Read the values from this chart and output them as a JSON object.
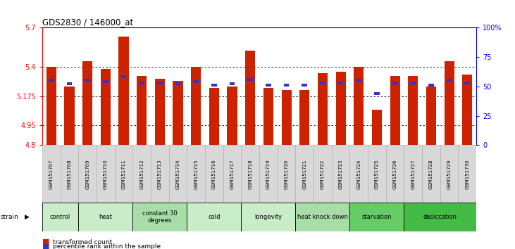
{
  "title": "GDS2830 / 146000_at",
  "samples": [
    "GSM151707",
    "GSM151708",
    "GSM151709",
    "GSM151710",
    "GSM151711",
    "GSM151712",
    "GSM151713",
    "GSM151714",
    "GSM151715",
    "GSM151716",
    "GSM151717",
    "GSM151718",
    "GSM151719",
    "GSM151720",
    "GSM151721",
    "GSM151722",
    "GSM151723",
    "GSM151724",
    "GSM151725",
    "GSM151726",
    "GSM151727",
    "GSM151728",
    "GSM151729",
    "GSM151730"
  ],
  "red_values": [
    5.4,
    5.25,
    5.44,
    5.38,
    5.63,
    5.33,
    5.31,
    5.29,
    5.4,
    5.24,
    5.25,
    5.52,
    5.24,
    5.22,
    5.22,
    5.35,
    5.36,
    5.4,
    5.07,
    5.33,
    5.33,
    5.25,
    5.44,
    5.34
  ],
  "blue_values": [
    55,
    52,
    55,
    54,
    58,
    53,
    53,
    52,
    54,
    51,
    52,
    56,
    51,
    51,
    51,
    53,
    53,
    55,
    44,
    53,
    53,
    51,
    55,
    53
  ],
  "strain_groups": [
    {
      "label": "control",
      "start": 0,
      "end": 2,
      "color": "#c8edc8"
    },
    {
      "label": "heat",
      "start": 2,
      "end": 5,
      "color": "#c8edc8"
    },
    {
      "label": "constant 30\ndegrees",
      "start": 5,
      "end": 8,
      "color": "#a8dda8"
    },
    {
      "label": "cold",
      "start": 8,
      "end": 11,
      "color": "#c8edc8"
    },
    {
      "label": "longevity",
      "start": 11,
      "end": 14,
      "color": "#c8edc8"
    },
    {
      "label": "heat knock down",
      "start": 14,
      "end": 17,
      "color": "#a8dda8"
    },
    {
      "label": "starvation",
      "start": 17,
      "end": 20,
      "color": "#66cc66"
    },
    {
      "label": "desiccation",
      "start": 20,
      "end": 24,
      "color": "#44bb44"
    }
  ],
  "ymin": 4.8,
  "ymax": 5.7,
  "yticks": [
    5.7,
    5.4,
    5.175,
    4.95,
    4.8
  ],
  "ytick_labels": [
    "5.7",
    "5.4",
    "5.175",
    "4.95",
    "4.8"
  ],
  "grid_lines": [
    5.4,
    5.175,
    4.95
  ],
  "y2ticks": [
    0,
    25,
    50,
    75,
    100
  ],
  "y2tick_labels": [
    "0",
    "25",
    "50",
    "75",
    "100%"
  ],
  "bar_color": "#cc2200",
  "blue_color": "#3333cc",
  "baseline": 4.8,
  "bg_color": "#ffffff",
  "xtick_bg": "#d8d8d8"
}
